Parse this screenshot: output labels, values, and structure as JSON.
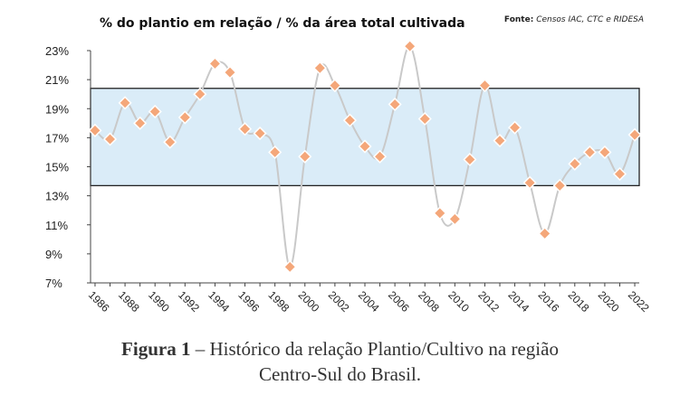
{
  "chart_data": {
    "type": "line",
    "title": "% do plantio em relação / % da área total cultivada",
    "source_label": "Fonte:",
    "source_text": "Censos IAC, CTC e RIDESA",
    "xlabel": "",
    "ylabel": "",
    "ylim": [
      7,
      23
    ],
    "y_ticks": [
      "7%",
      "9%",
      "11%",
      "13%",
      "15%",
      "17%",
      "19%",
      "21%",
      "23%"
    ],
    "x_tick_labels": [
      "1986",
      "1988",
      "1990",
      "1992",
      "1994",
      "1996",
      "1998",
      "2000",
      "2002",
      "2004",
      "2006",
      "2008",
      "2010",
      "2012",
      "2014",
      "2016",
      "2018",
      "2020",
      "2022"
    ],
    "band": {
      "low": 13.7,
      "high": 20.4,
      "fill": "#daecf8",
      "stroke": "#222222"
    },
    "series": [
      {
        "color": "#f4a77a",
        "line_color": "#c9c9c9",
        "x": [
          1986,
          1987,
          1988,
          1989,
          1990,
          1991,
          1992,
          1993,
          1994,
          1995,
          1996,
          1997,
          1998,
          1999,
          2000,
          2001,
          2002,
          2003,
          2004,
          2005,
          2006,
          2007,
          2008,
          2009,
          2010,
          2011,
          2012,
          2013,
          2014,
          2015,
          2016,
          2017,
          2018,
          2019,
          2020,
          2021,
          2022
        ],
        "values": [
          17.5,
          16.9,
          19.4,
          18.0,
          18.8,
          16.7,
          18.4,
          20.0,
          22.1,
          21.5,
          17.6,
          17.3,
          16.0,
          8.1,
          15.7,
          21.8,
          20.6,
          18.2,
          16.4,
          15.7,
          19.3,
          23.3,
          18.3,
          11.8,
          11.4,
          15.5,
          20.6,
          16.8,
          17.7,
          13.9,
          10.4,
          13.7,
          15.2,
          16.0,
          16.0,
          14.5,
          17.2
        ]
      }
    ]
  },
  "caption": {
    "figure_label": "Figura 1",
    "line1": " – Histórico da relação Plantio/Cultivo na região",
    "line2": "Centro-Sul do Brasil."
  }
}
